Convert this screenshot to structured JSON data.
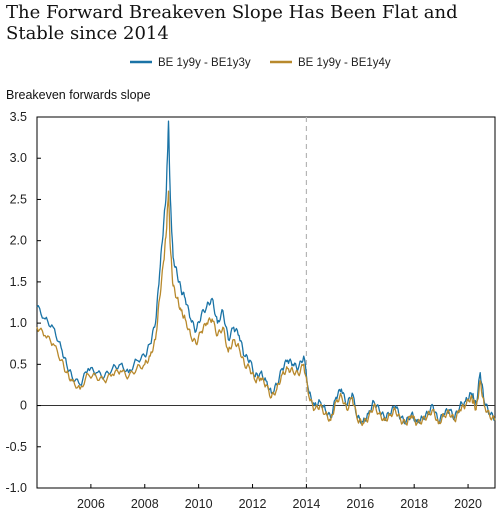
{
  "chart_data": {
    "type": "line",
    "title": "The Forward Breakeven Slope Has Been Flat and Stable since 2014",
    "ylabel": "Breakeven forwards slope",
    "xlabel": "",
    "xlim": [
      2004.0,
      2021.0
    ],
    "ylim": [
      -1.0,
      3.5
    ],
    "y_ticks": [
      "3.5",
      "3.0",
      "2.5",
      "2.0",
      "1.5",
      "1.0",
      "0.5",
      "0",
      "-0.5",
      "-1.0"
    ],
    "x_ticks": [
      "2006",
      "2008",
      "2010",
      "2012",
      "2014",
      "2016",
      "2018",
      "2020"
    ],
    "reference_lines": {
      "horizontal_zero": 0,
      "vertical_dashed_year": 2014.0
    },
    "legend": {
      "placement": "top-center"
    },
    "grid": false,
    "series": [
      {
        "name": "BE 1y9y - BE1y3y",
        "color": "#1a73a6",
        "x": [
          2004.0,
          2004.3,
          2004.6,
          2004.9,
          2005.1,
          2005.3,
          2005.6,
          2005.9,
          2006.2,
          2006.5,
          2006.8,
          2007.1,
          2007.4,
          2007.7,
          2008.0,
          2008.2,
          2008.4,
          2008.55,
          2008.7,
          2008.8,
          2008.88,
          2008.95,
          2009.05,
          2009.2,
          2009.35,
          2009.5,
          2009.7,
          2009.9,
          2010.1,
          2010.3,
          2010.5,
          2010.7,
          2010.9,
          2011.1,
          2011.3,
          2011.5,
          2011.7,
          2011.9,
          2012.1,
          2012.3,
          2012.5,
          2012.7,
          2012.9,
          2013.1,
          2013.3,
          2013.5,
          2013.7,
          2013.9,
          2014.1,
          2014.3,
          2014.5,
          2014.7,
          2014.9,
          2015.1,
          2015.3,
          2015.5,
          2015.7,
          2015.9,
          2016.1,
          2016.3,
          2016.5,
          2016.7,
          2016.9,
          2017.1,
          2017.3,
          2017.5,
          2017.7,
          2017.9,
          2018.1,
          2018.3,
          2018.5,
          2018.7,
          2018.9,
          2019.1,
          2019.3,
          2019.5,
          2019.7,
          2019.9,
          2020.1,
          2020.2,
          2020.3,
          2020.45,
          2020.6,
          2020.8,
          2021.0
        ],
        "values": [
          1.2,
          1.05,
          0.95,
          0.7,
          0.5,
          0.35,
          0.25,
          0.45,
          0.4,
          0.35,
          0.45,
          0.5,
          0.4,
          0.55,
          0.6,
          0.75,
          1.0,
          1.6,
          2.2,
          2.6,
          3.45,
          2.5,
          1.8,
          1.6,
          1.4,
          1.3,
          1.05,
          0.9,
          1.1,
          1.2,
          1.3,
          1.0,
          1.15,
          0.8,
          0.95,
          0.85,
          0.6,
          0.55,
          0.35,
          0.4,
          0.3,
          0.15,
          0.25,
          0.45,
          0.55,
          0.5,
          0.45,
          0.6,
          0.15,
          0.0,
          0.05,
          -0.05,
          -0.15,
          0.1,
          0.2,
          0.0,
          0.15,
          -0.15,
          -0.2,
          -0.1,
          0.05,
          -0.05,
          -0.15,
          -0.1,
          0.0,
          -0.15,
          -0.2,
          -0.1,
          -0.2,
          -0.15,
          -0.1,
          0.0,
          -0.2,
          -0.1,
          -0.05,
          -0.15,
          0.0,
          0.05,
          0.15,
          0.1,
          0.0,
          0.4,
          0.05,
          -0.1,
          -0.15
        ]
      },
      {
        "name": "BE 1y9y - BE1y4y",
        "color": "#b8892c",
        "x": [
          2004.0,
          2004.3,
          2004.6,
          2004.9,
          2005.1,
          2005.3,
          2005.6,
          2005.9,
          2006.2,
          2006.5,
          2006.8,
          2007.1,
          2007.4,
          2007.7,
          2008.0,
          2008.2,
          2008.4,
          2008.55,
          2008.7,
          2008.8,
          2008.88,
          2008.95,
          2009.05,
          2009.2,
          2009.35,
          2009.5,
          2009.7,
          2009.9,
          2010.1,
          2010.3,
          2010.5,
          2010.7,
          2010.9,
          2011.1,
          2011.3,
          2011.5,
          2011.7,
          2011.9,
          2012.1,
          2012.3,
          2012.5,
          2012.7,
          2012.9,
          2013.1,
          2013.3,
          2013.5,
          2013.7,
          2013.9,
          2014.1,
          2014.3,
          2014.5,
          2014.7,
          2014.9,
          2015.1,
          2015.3,
          2015.5,
          2015.7,
          2015.9,
          2016.1,
          2016.3,
          2016.5,
          2016.7,
          2016.9,
          2017.1,
          2017.3,
          2017.5,
          2017.7,
          2017.9,
          2018.1,
          2018.3,
          2018.5,
          2018.7,
          2018.9,
          2019.1,
          2019.3,
          2019.5,
          2019.7,
          2019.9,
          2020.1,
          2020.2,
          2020.3,
          2020.45,
          2020.6,
          2020.8,
          2021.0
        ],
        "values": [
          0.95,
          0.85,
          0.75,
          0.55,
          0.4,
          0.3,
          0.2,
          0.38,
          0.35,
          0.3,
          0.38,
          0.42,
          0.35,
          0.45,
          0.5,
          0.6,
          0.8,
          1.3,
          1.75,
          2.1,
          2.6,
          1.9,
          1.45,
          1.3,
          1.15,
          1.05,
          0.85,
          0.75,
          0.9,
          1.0,
          1.05,
          0.85,
          0.95,
          0.65,
          0.8,
          0.7,
          0.5,
          0.45,
          0.3,
          0.33,
          0.25,
          0.1,
          0.2,
          0.38,
          0.45,
          0.42,
          0.38,
          0.5,
          0.1,
          -0.05,
          0.0,
          -0.1,
          -0.18,
          0.05,
          0.12,
          -0.05,
          0.1,
          -0.18,
          -0.22,
          -0.15,
          0.0,
          -0.1,
          -0.18,
          -0.12,
          -0.05,
          -0.18,
          -0.22,
          -0.12,
          -0.22,
          -0.18,
          -0.12,
          -0.05,
          -0.22,
          -0.12,
          -0.08,
          -0.18,
          -0.05,
          0.0,
          0.1,
          0.05,
          -0.05,
          0.3,
          0.0,
          -0.12,
          -0.18
        ]
      }
    ]
  }
}
